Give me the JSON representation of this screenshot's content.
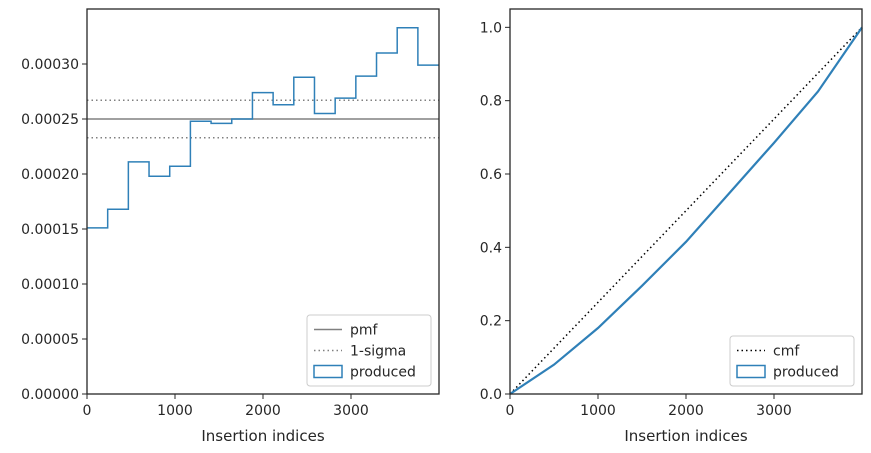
{
  "chart_data": [
    {
      "type": "step",
      "xlabel": "Insertion indices",
      "ylabel": "",
      "xlim": [
        0,
        4000
      ],
      "ylim": [
        0,
        0.00035
      ],
      "xticks": [
        0,
        1000,
        2000,
        3000
      ],
      "xtick_labels": [
        "0",
        "1000",
        "2000",
        "3000"
      ],
      "yticks": [
        0,
        5e-05,
        0.0001,
        0.00015,
        0.0002,
        0.00025,
        0.0003
      ],
      "ytick_labels": [
        "0.00000",
        "0.00005",
        "0.00010",
        "0.00015",
        "0.00020",
        "0.00025",
        "0.00030"
      ],
      "grid": false,
      "legend_position": "lower-right",
      "lines": [
        {
          "name": "pmf",
          "y": 0.00025,
          "style": "solid",
          "color": "#808080"
        },
        {
          "name": "1-sigma",
          "y": 0.000233,
          "style": "dotted",
          "color": "#808080"
        },
        {
          "name": "1-sigma",
          "y": 0.000267,
          "style": "dotted",
          "color": "#808080"
        }
      ],
      "series": [
        {
          "name": "produced",
          "color": "#2f80b8",
          "bin_edges": [
            0,
            235,
            470,
            705,
            940,
            1175,
            1410,
            1645,
            1880,
            2115,
            2350,
            2585,
            2820,
            3055,
            3290,
            3525,
            3760,
            4000
          ],
          "values": [
            0.000151,
            0.000168,
            0.000211,
            0.000198,
            0.000207,
            0.000248,
            0.000246,
            0.00025,
            0.000274,
            0.000263,
            0.000288,
            0.000255,
            0.000269,
            0.000289,
            0.00031,
            0.000333,
            0.000299
          ]
        }
      ],
      "legend": [
        "pmf",
        "1-sigma",
        "produced"
      ]
    },
    {
      "type": "line",
      "xlabel": "Insertion indices",
      "ylabel": "",
      "xlim": [
        0,
        4000
      ],
      "ylim": [
        0,
        1.05
      ],
      "xticks": [
        0,
        1000,
        2000,
        3000
      ],
      "xtick_labels": [
        "0",
        "1000",
        "2000",
        "3000"
      ],
      "yticks": [
        0,
        0.2,
        0.4,
        0.6,
        0.8,
        1.0
      ],
      "ytick_labels": [
        "0.0",
        "0.2",
        "0.4",
        "0.6",
        "0.8",
        "1.0"
      ],
      "grid": false,
      "legend_position": "lower-right",
      "series": [
        {
          "name": "cmf",
          "style": "dotted",
          "color": "#000000",
          "x": [
            0,
            4000
          ],
          "y": [
            0,
            1.0
          ]
        },
        {
          "name": "produced",
          "style": "solid",
          "color": "#2f80b8",
          "x": [
            0,
            500,
            1000,
            1500,
            2000,
            2500,
            3000,
            3500,
            4000
          ],
          "y": [
            0,
            0.08,
            0.18,
            0.295,
            0.415,
            0.55,
            0.685,
            0.825,
            1.0
          ]
        }
      ],
      "legend": [
        "cmf",
        "produced"
      ]
    }
  ]
}
